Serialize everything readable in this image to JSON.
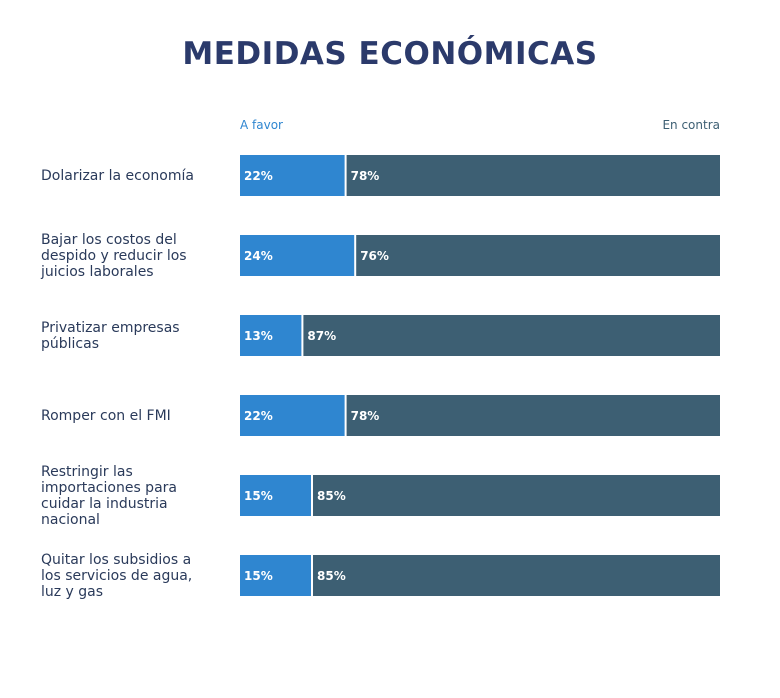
{
  "chart_data": {
    "type": "bar",
    "orientation": "horizontal",
    "stacked": true,
    "title": "MEDIDAS ECONÓMICAS",
    "categories": [
      "Dolarizar la economía",
      "Bajar los costos del despido y reducir los juicios laborales",
      "Privatizar empresas públicas",
      "Romper con el FMI",
      "Restringir las importaciones para cuidar la industria nacional",
      "Quitar los subsidios a los servicios de agua, luz y gas"
    ],
    "series": [
      {
        "name": "A favor",
        "color": "#2f86d0",
        "values": [
          22,
          24,
          13,
          22,
          15,
          15
        ],
        "value_labels": [
          "22%",
          "24%",
          "13%",
          "22%",
          "15%",
          "15%"
        ]
      },
      {
        "name": "En contra",
        "color": "#3d5f73",
        "values": [
          78,
          76,
          87,
          78,
          85,
          85
        ],
        "value_labels": [
          "78%",
          "76%",
          "87%",
          "78%",
          "85%",
          "85%"
        ]
      }
    ],
    "xlim": [
      0,
      100
    ]
  }
}
